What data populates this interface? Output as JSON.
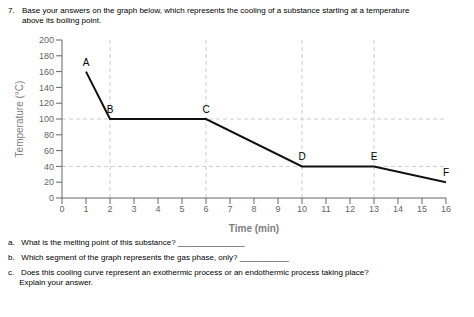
{
  "chart_data": {
    "type": "line",
    "title": "7.",
    "subtitle": "Base your answers on the graph below, which represents the cooling of a substance starting at a temperature\nabove its boiling point.",
    "x_label": "Time (min)",
    "y_label": "Temperature (°C)",
    "x": [
      1,
      2,
      6,
      10,
      13,
      16
    ],
    "values": [
      160,
      100,
      100,
      40,
      40,
      20
    ],
    "point_labels": [
      "A",
      "B",
      "C",
      "D",
      "E",
      "F"
    ],
    "color": "#111111",
    "xlim": [
      0,
      16
    ],
    "ylim": [
      0,
      200
    ],
    "xticks": [
      0,
      1,
      2,
      3,
      4,
      5,
      6,
      7,
      8,
      9,
      10,
      11,
      12,
      13,
      14,
      15,
      16
    ],
    "yticks": [
      0,
      20,
      40,
      60,
      80,
      100,
      120,
      140,
      160,
      180,
      200
    ],
    "reference_lines": {
      "y": [
        100,
        40
      ],
      "x": [
        2,
        6,
        10,
        13
      ]
    },
    "grid": false,
    "annotations": [
      "a.   What is the melting point of this substance? _______________",
      "b.   Which segment of the graph represents the gas phase, only? ___________",
      "c.   Does this cooling curve represent an exothermic process or an endothermic process taking place?\n     Explain your answer."
    ]
  }
}
